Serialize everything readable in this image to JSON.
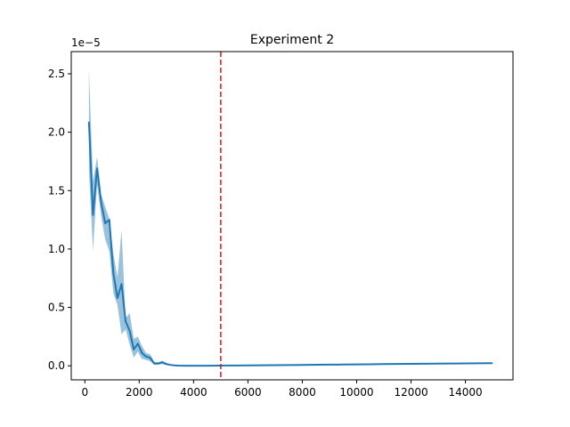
{
  "chart_data": {
    "type": "line",
    "title": "Experiment 2",
    "xlabel": "",
    "ylabel": "",
    "offset_text": "1e−5",
    "xlim": [
      -500,
      15750
    ],
    "ylim": [
      -0.12,
      2.69
    ],
    "xticks": [
      0,
      2000,
      4000,
      6000,
      8000,
      10000,
      12000,
      14000
    ],
    "yticks": [
      0.0,
      0.5,
      1.0,
      1.5,
      2.0,
      2.5
    ],
    "xtick_labels": [
      "0",
      "2000",
      "4000",
      "6000",
      "8000",
      "10000",
      "12000",
      "14000"
    ],
    "ytick_labels": [
      "0.0",
      "0.5",
      "1.0",
      "1.5",
      "2.0",
      "2.5"
    ],
    "grid": false,
    "line_color": "#1f77b4",
    "band_color": "#1f77b4",
    "vline": {
      "x": 5000,
      "color": "#d62728",
      "style": "dashed"
    },
    "series": [
      {
        "x": [
          150,
          300,
          450,
          600,
          750,
          900,
          1050,
          1200,
          1350,
          1500,
          1650,
          1800,
          1950,
          2100,
          2250,
          2400,
          2550,
          2700,
          2850,
          3000,
          3150,
          3300,
          3450,
          3600,
          3800,
          4000,
          4500,
          5000,
          5500,
          6000,
          6500,
          7000,
          7500,
          8000,
          8500,
          9000,
          9500,
          10000,
          10500,
          11000,
          11500,
          12000,
          12500,
          13000,
          13500,
          14000,
          14500,
          15000
        ],
        "y": [
          2.09,
          1.29,
          1.69,
          1.4,
          1.22,
          1.25,
          0.79,
          0.58,
          0.7,
          0.38,
          0.3,
          0.14,
          0.19,
          0.11,
          0.08,
          0.07,
          0.02,
          0.02,
          0.03,
          0.015,
          0.008,
          0.004,
          0.002,
          0.001,
          0.001,
          0.001,
          0.001,
          0.002,
          0.003,
          0.004,
          0.005,
          0.006,
          0.007,
          0.008,
          0.009,
          0.01,
          0.011,
          0.012,
          0.013,
          0.015,
          0.016,
          0.017,
          0.018,
          0.019,
          0.02,
          0.021,
          0.022,
          0.023
        ],
        "lower": [
          1.68,
          0.98,
          1.55,
          1.28,
          1.08,
          0.98,
          0.62,
          0.52,
          0.27,
          0.31,
          0.18,
          0.07,
          0.12,
          0.06,
          0.05,
          0.04,
          0.01,
          0.01,
          0.015,
          0.008,
          0.004,
          0.002,
          0.001,
          0.0,
          0.0,
          0.0,
          0.0,
          0.001,
          0.001,
          0.002,
          0.003,
          0.004,
          0.005,
          0.006,
          0.007,
          0.008,
          0.009,
          0.01,
          0.011,
          0.012,
          0.013,
          0.014,
          0.015,
          0.016,
          0.017,
          0.018,
          0.019,
          0.02
        ],
        "upper": [
          2.54,
          1.58,
          1.79,
          1.47,
          1.36,
          1.26,
          0.96,
          0.76,
          1.16,
          0.41,
          0.45,
          0.23,
          0.25,
          0.17,
          0.11,
          0.1,
          0.035,
          0.03,
          0.045,
          0.025,
          0.012,
          0.006,
          0.004,
          0.003,
          0.003,
          0.003,
          0.003,
          0.004,
          0.005,
          0.006,
          0.007,
          0.008,
          0.009,
          0.01,
          0.011,
          0.012,
          0.013,
          0.014,
          0.015,
          0.018,
          0.019,
          0.02,
          0.021,
          0.022,
          0.023,
          0.024,
          0.025,
          0.026
        ]
      }
    ]
  }
}
